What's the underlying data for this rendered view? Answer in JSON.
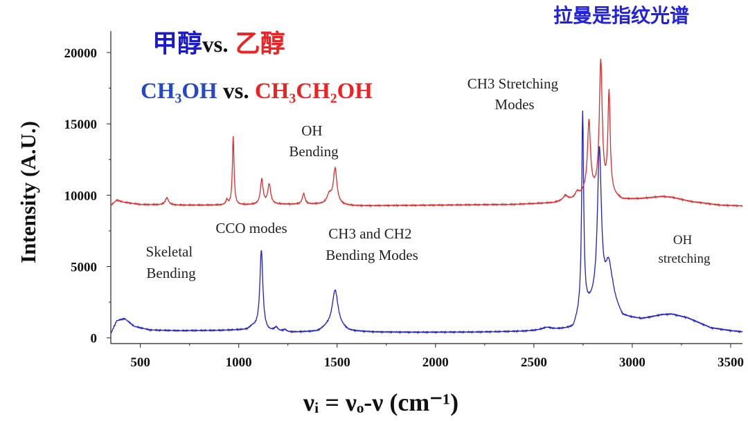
{
  "header": {
    "top_right": "拉曼是指纹光谱",
    "title_part1": "甲醇",
    "title_vs": "vs.",
    "title_part2": "乙醇",
    "formula_blue": "CH₃OH",
    "formula_vs": " vs. ",
    "formula_red": "CH₃CH₂OH"
  },
  "chart_data": {
    "type": "line",
    "xlabel": "νᵢ = νₒ-ν (cm⁻¹)",
    "ylabel": "Intensity (A.U.)",
    "xlim": [
      350,
      3560
    ],
    "ylim": [
      -400,
      21500
    ],
    "x_ticks": [
      500,
      1000,
      1500,
      2000,
      2500,
      3000,
      3500
    ],
    "y_ticks": [
      0,
      5000,
      10000,
      15000,
      20000
    ],
    "grid": false,
    "legend": "none",
    "series": [
      {
        "color": "#1c1cc8",
        "baseline": [
          [
            350,
            300
          ],
          [
            380,
            1200
          ],
          [
            420,
            1350
          ],
          [
            470,
            800
          ],
          [
            550,
            550
          ],
          [
            700,
            500
          ],
          [
            900,
            520
          ],
          [
            1040,
            560
          ],
          [
            1070,
            750
          ],
          [
            1150,
            420
          ],
          [
            1190,
            450
          ],
          [
            1250,
            380
          ],
          [
            1400,
            420
          ],
          [
            1450,
            700
          ],
          [
            1530,
            600
          ],
          [
            1560,
            450
          ],
          [
            1700,
            400
          ],
          [
            1900,
            390
          ],
          [
            2200,
            400
          ],
          [
            2450,
            450
          ],
          [
            2700,
            600
          ],
          [
            2740,
            1800
          ],
          [
            2800,
            2200
          ],
          [
            2900,
            2500
          ],
          [
            2950,
            1400
          ],
          [
            3050,
            1300
          ],
          [
            3150,
            1600
          ],
          [
            3200,
            1650
          ],
          [
            3280,
            1400
          ],
          [
            3400,
            700
          ],
          [
            3500,
            500
          ],
          [
            3560,
            420
          ]
        ],
        "peaks": [
          {
            "x": 1115,
            "height": 5600,
            "width": 9
          },
          {
            "x": 1190,
            "height": 250,
            "width": 10
          },
          {
            "x": 1235,
            "height": 150,
            "width": 10
          },
          {
            "x": 1490,
            "height": 2700,
            "width": 18
          },
          {
            "x": 2565,
            "height": 180,
            "width": 30
          },
          {
            "x": 2748,
            "height": 13800,
            "width": 6
          },
          {
            "x": 2833,
            "height": 10700,
            "width": 12
          },
          {
            "x": 2880,
            "height": 2500,
            "width": 20
          }
        ]
      },
      {
        "color": "#dd2a2a",
        "baseline": [
          [
            350,
            9300
          ],
          [
            380,
            9650
          ],
          [
            420,
            9500
          ],
          [
            500,
            9350
          ],
          [
            700,
            9300
          ],
          [
            1000,
            9300
          ],
          [
            1200,
            9350
          ],
          [
            1400,
            9350
          ],
          [
            1600,
            9250
          ],
          [
            2000,
            9300
          ],
          [
            2400,
            9350
          ],
          [
            2600,
            9450
          ],
          [
            2720,
            9700
          ],
          [
            2760,
            10100
          ],
          [
            2900,
            9900
          ],
          [
            2950,
            9650
          ],
          [
            3050,
            9750
          ],
          [
            3150,
            9900
          ],
          [
            3200,
            9850
          ],
          [
            3300,
            9550
          ],
          [
            3450,
            9300
          ],
          [
            3560,
            9250
          ]
        ],
        "peaks": [
          {
            "x": 635,
            "height": 500,
            "width": 10
          },
          {
            "x": 940,
            "height": 350,
            "width": 6
          },
          {
            "x": 972,
            "height": 4800,
            "width": 5
          },
          {
            "x": 1117,
            "height": 1750,
            "width": 8
          },
          {
            "x": 1155,
            "height": 1400,
            "width": 9
          },
          {
            "x": 1330,
            "height": 750,
            "width": 8
          },
          {
            "x": 1460,
            "height": 650,
            "width": 14
          },
          {
            "x": 1490,
            "height": 2500,
            "width": 11
          },
          {
            "x": 2660,
            "height": 350,
            "width": 15
          },
          {
            "x": 2720,
            "height": 450,
            "width": 12
          },
          {
            "x": 2780,
            "height": 5000,
            "width": 9
          },
          {
            "x": 2840,
            "height": 9300,
            "width": 9
          },
          {
            "x": 2882,
            "height": 7100,
            "width": 7
          }
        ]
      }
    ],
    "annotations": {
      "skeletal": [
        "Skeletal",
        "Bending"
      ],
      "cco": [
        "CCO modes"
      ],
      "oh_bend": [
        "OH",
        "Bending"
      ],
      "ch3ch2": [
        "CH3 and CH2",
        "Bending Modes"
      ],
      "ch3str": [
        "CH3 Stretching",
        "Modes"
      ],
      "oh_str": [
        "OH",
        "stretching"
      ]
    }
  }
}
